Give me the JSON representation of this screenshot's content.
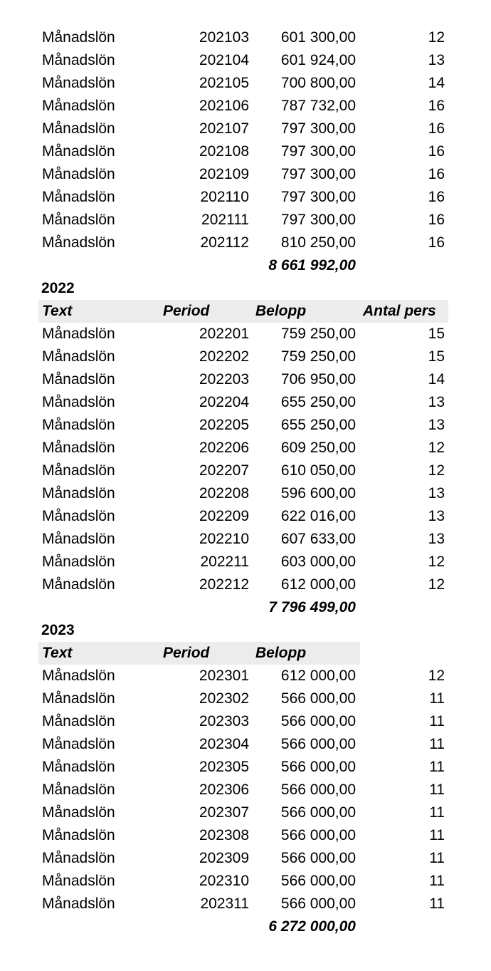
{
  "blocks": [
    {
      "year": "",
      "headers": [],
      "rows": [
        {
          "text": "Månadslön",
          "period": "202103",
          "amount": "601 300,00",
          "count": "12"
        },
        {
          "text": "Månadslön",
          "period": "202104",
          "amount": "601 924,00",
          "count": "13"
        },
        {
          "text": "Månadslön",
          "period": "202105",
          "amount": "700 800,00",
          "count": "14"
        },
        {
          "text": "Månadslön",
          "period": "202106",
          "amount": "787 732,00",
          "count": "16"
        },
        {
          "text": "Månadslön",
          "period": "202107",
          "amount": "797 300,00",
          "count": "16"
        },
        {
          "text": "Månadslön",
          "period": "202108",
          "amount": "797 300,00",
          "count": "16"
        },
        {
          "text": "Månadslön",
          "period": "202109",
          "amount": "797 300,00",
          "count": "16"
        },
        {
          "text": "Månadslön",
          "period": "202110",
          "amount": "797 300,00",
          "count": "16"
        },
        {
          "text": "Månadslön",
          "period": "202111",
          "amount": "797 300,00",
          "count": "16"
        },
        {
          "text": "Månadslön",
          "period": "202112",
          "amount": "810 250,00",
          "count": "16"
        }
      ],
      "total": "8 661 992,00"
    },
    {
      "year": "2022",
      "headers": [
        "Text",
        "Period",
        "Belopp",
        "Antal pers"
      ],
      "rows": [
        {
          "text": "Månadslön",
          "period": "202201",
          "amount": "759 250,00",
          "count": "15"
        },
        {
          "text": "Månadslön",
          "period": "202202",
          "amount": "759 250,00",
          "count": "15"
        },
        {
          "text": "Månadslön",
          "period": "202203",
          "amount": "706 950,00",
          "count": "14"
        },
        {
          "text": "Månadslön",
          "period": "202204",
          "amount": "655 250,00",
          "count": "13"
        },
        {
          "text": "Månadslön",
          "period": "202205",
          "amount": "655 250,00",
          "count": "13"
        },
        {
          "text": "Månadslön",
          "period": "202206",
          "amount": "609 250,00",
          "count": "12"
        },
        {
          "text": "Månadslön",
          "period": "202207",
          "amount": "610 050,00",
          "count": "12"
        },
        {
          "text": "Månadslön",
          "period": "202208",
          "amount": "596 600,00",
          "count": "13"
        },
        {
          "text": "Månadslön",
          "period": "202209",
          "amount": "622 016,00",
          "count": "13"
        },
        {
          "text": "Månadslön",
          "period": "202210",
          "amount": "607 633,00",
          "count": "13"
        },
        {
          "text": "Månadslön",
          "period": "202211",
          "amount": "603 000,00",
          "count": "12"
        },
        {
          "text": "Månadslön",
          "period": "202212",
          "amount": "612 000,00",
          "count": "12"
        }
      ],
      "total": "7 796 499,00"
    },
    {
      "year": "2023",
      "headers": [
        "Text",
        "Period",
        "Belopp"
      ],
      "rows": [
        {
          "text": "Månadslön",
          "period": "202301",
          "amount": "612 000,00",
          "count": "12"
        },
        {
          "text": "Månadslön",
          "period": "202302",
          "amount": "566 000,00",
          "count": "11"
        },
        {
          "text": "Månadslön",
          "period": "202303",
          "amount": "566 000,00",
          "count": "11"
        },
        {
          "text": "Månadslön",
          "period": "202304",
          "amount": "566 000,00",
          "count": "11"
        },
        {
          "text": "Månadslön",
          "period": "202305",
          "amount": "566 000,00",
          "count": "11"
        },
        {
          "text": "Månadslön",
          "period": "202306",
          "amount": "566 000,00",
          "count": "11"
        },
        {
          "text": "Månadslön",
          "period": "202307",
          "amount": "566 000,00",
          "count": "11"
        },
        {
          "text": "Månadslön",
          "period": "202308",
          "amount": "566 000,00",
          "count": "11"
        },
        {
          "text": "Månadslön",
          "period": "202309",
          "amount": "566 000,00",
          "count": "11"
        },
        {
          "text": "Månadslön",
          "period": "202310",
          "amount": "566 000,00",
          "count": "11"
        },
        {
          "text": "Månadslön",
          "period": "202311",
          "amount": "566 000,00",
          "count": "11"
        }
      ],
      "total": "6 272 000,00"
    }
  ]
}
